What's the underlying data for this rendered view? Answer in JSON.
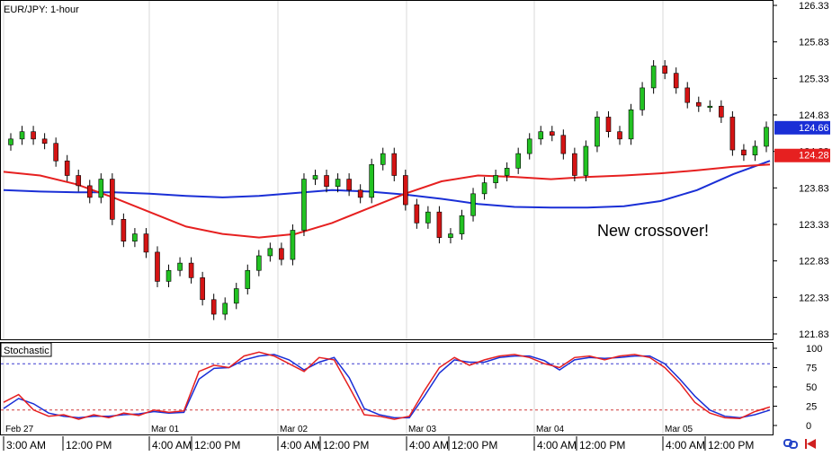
{
  "symbol_label": "EUR/JPY: 1-hour",
  "indicator_label": "Stochastic",
  "annotation": "New crossover!",
  "colors": {
    "bull": "#22c222",
    "bear": "#d41414",
    "ma_fast": "#e62020",
    "ma_slow": "#1a2fd6",
    "stoch_k": "#e62020",
    "stoch_d": "#1a2fd6",
    "grid": "#d8d8d8",
    "level": "#3a3ad0",
    "level_low": "#d03a3a"
  },
  "icons": [
    "chart-link-icon",
    "scroll-end-icon"
  ],
  "chart_data": [
    {
      "type": "candlestick",
      "title": "EUR/JPY: 1-hour",
      "y_ticks": [
        "126.33",
        "125.83",
        "125.33",
        "124.83",
        "124.33",
        "123.83",
        "123.33",
        "122.83",
        "122.33",
        "121.83"
      ],
      "ylim": [
        121.83,
        126.33
      ],
      "price_labels": [
        {
          "value": "124.66",
          "color": "#1a2fd6"
        },
        {
          "value": "124.28",
          "color": "#e62020"
        }
      ],
      "date_labels": [
        "Feb 27",
        "Mar 01",
        "Mar 02",
        "Mar 03",
        "Mar 04",
        "Mar 05"
      ],
      "time_labels": [
        "3:00 AM",
        "12:00 PM",
        "4:00 AM",
        "12:00 PM",
        "4:00 AM",
        "12:00 PM",
        "4:00 AM",
        "12:00 PM",
        "4:00 AM",
        "12:00 PM",
        "4:00 AM",
        "12:00 PM"
      ],
      "close": [
        124.5,
        124.6,
        124.5,
        124.44,
        124.2,
        124.0,
        123.86,
        123.7,
        123.95,
        123.4,
        123.1,
        123.2,
        122.95,
        122.55,
        122.7,
        122.8,
        122.6,
        122.3,
        122.1,
        122.25,
        122.45,
        122.7,
        122.9,
        123.0,
        122.85,
        123.25,
        123.95,
        124.0,
        123.85,
        123.95,
        123.8,
        123.7,
        124.15,
        124.3,
        124.0,
        123.6,
        123.35,
        123.5,
        123.15,
        123.2,
        123.45,
        123.75,
        123.9,
        124.0,
        124.1,
        124.3,
        124.5,
        124.6,
        124.55,
        124.3,
        124.0,
        124.4,
        124.8,
        124.6,
        124.5,
        124.9,
        125.2,
        125.5,
        125.4,
        125.2,
        125.0,
        124.95,
        124.95,
        124.8,
        124.35,
        124.28,
        124.4,
        124.66
      ],
      "series": [
        {
          "name": "",
          "values": [
            124.05,
            124.0,
            123.88,
            123.7,
            123.5,
            123.3,
            123.2,
            123.15,
            123.2,
            123.35,
            123.55,
            123.75,
            123.92,
            124.0,
            123.98,
            123.95,
            123.98,
            124.0,
            124.03,
            124.07,
            124.12,
            124.15
          ]
        },
        {
          "name": "",
          "values": [
            123.8,
            123.78,
            123.77,
            123.77,
            123.75,
            123.72,
            123.7,
            123.72,
            123.76,
            123.8,
            123.78,
            123.74,
            123.68,
            123.61,
            123.57,
            123.56,
            123.56,
            123.58,
            123.65,
            123.8,
            124.02,
            124.2
          ]
        }
      ]
    },
    {
      "type": "line",
      "title": "Stochastic",
      "y_ticks": [
        "100",
        "75",
        "50",
        "25",
        "0"
      ],
      "ylim": [
        0,
        100
      ],
      "levels": [
        80,
        20
      ],
      "series": [
        {
          "name": "",
          "values": [
            30,
            40,
            20,
            12,
            14,
            8,
            14,
            10,
            16,
            13,
            20,
            17,
            19,
            70,
            78,
            75,
            90,
            95,
            90,
            80,
            70,
            88,
            85,
            50,
            14,
            12,
            8,
            12,
            45,
            75,
            88,
            78,
            85,
            90,
            92,
            88,
            80,
            75,
            88,
            90,
            85,
            90,
            92,
            88,
            75,
            55,
            30,
            16,
            10,
            9,
            18,
            24
          ]
        },
        {
          "name": "",
          "values": [
            22,
            35,
            28,
            16,
            12,
            10,
            12,
            12,
            14,
            15,
            18,
            16,
            17,
            60,
            74,
            75,
            85,
            90,
            92,
            85,
            72,
            82,
            88,
            62,
            22,
            14,
            10,
            10,
            38,
            68,
            85,
            82,
            82,
            88,
            90,
            90,
            84,
            72,
            85,
            88,
            87,
            88,
            90,
            90,
            80,
            60,
            38,
            20,
            12,
            10,
            14,
            20
          ]
        }
      ]
    }
  ]
}
